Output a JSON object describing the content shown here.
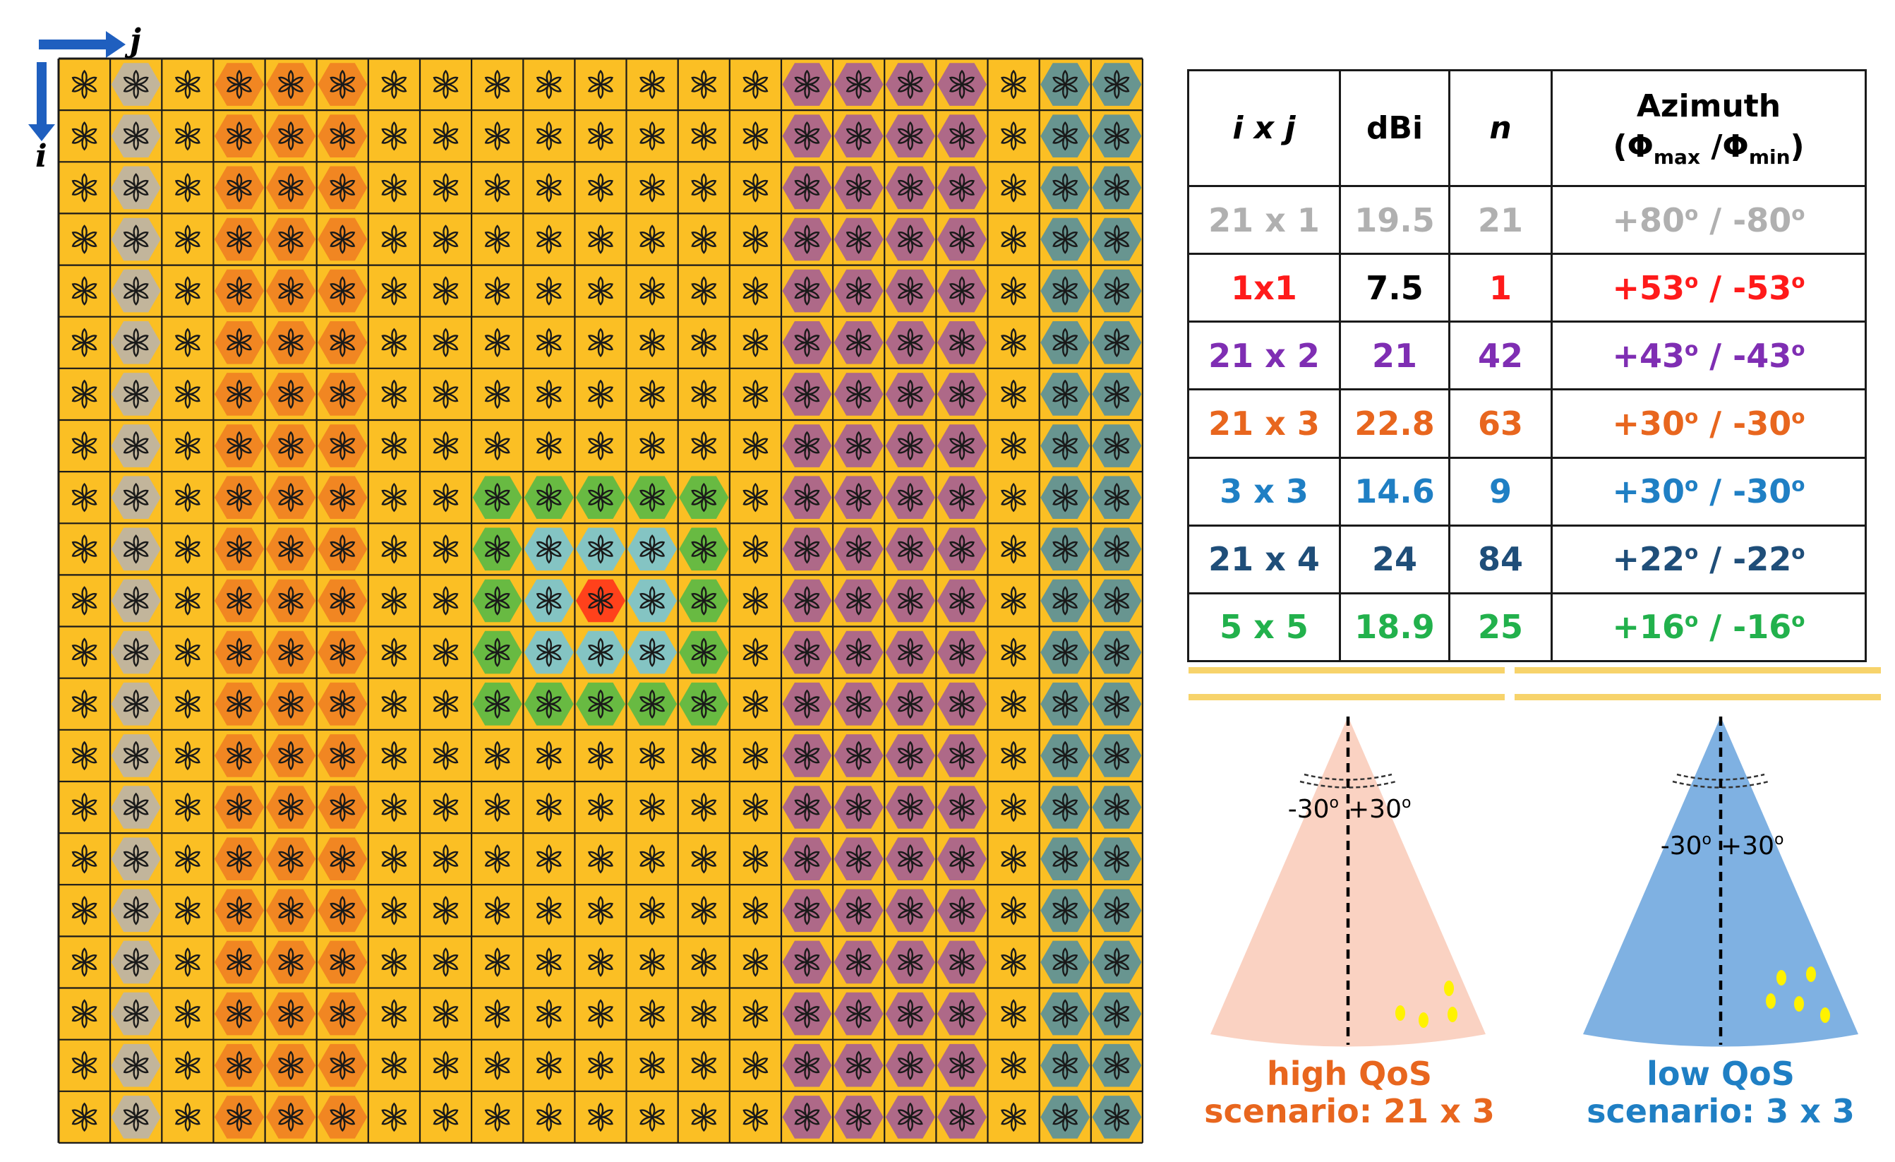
{
  "grid": {
    "rows": 21,
    "cols": 21,
    "axis_i": "i",
    "axis_j": "j",
    "colors": {
      "board": "#FBBF24",
      "grid_line": "#1a1a1a",
      "arrow": "#1f5fbf",
      "gray": "#B7B3B0",
      "orange": "#EE7B22",
      "purple": "#A0599A",
      "teal": "#4E8DA3",
      "green": "#4DB848",
      "lightblue": "#6EC4DF",
      "red": "#FF2A1A"
    },
    "highlight_columns": [
      {
        "cols": [
          2
        ],
        "color": "gray"
      },
      {
        "cols": [
          4,
          5,
          6
        ],
        "color": "orange"
      },
      {
        "cols": [
          15,
          16,
          17,
          18
        ],
        "color": "purple"
      },
      {
        "cols": [
          20,
          21
        ],
        "color": "teal"
      }
    ],
    "highlight_block": {
      "rows": [
        9,
        13
      ],
      "cols": [
        9,
        13
      ],
      "outer_color": "green",
      "inner_rows": [
        10,
        12
      ],
      "inner_cols": [
        10,
        12
      ],
      "inner_color": "lightblue",
      "center": [
        11,
        11
      ],
      "center_color": "red"
    }
  },
  "table": {
    "headers": [
      "i x j",
      "dBi",
      "n",
      "Azimuth"
    ],
    "azimuth_sub": {
      "open": "(Φ",
      "max": "max",
      "sep": " /Φ",
      "min": "min",
      "close": ")"
    },
    "rows": [
      {
        "ixj": "21 x 1",
        "dbi": "19.5",
        "n": "21",
        "az_max": "+80",
        "az_min": "-80",
        "color": "#B0B0B0"
      },
      {
        "ixj": "1x1",
        "dbi": "7.5",
        "n": "1",
        "az_max": "+53",
        "az_min": "-53",
        "color": "#FF1A1A",
        "dbi_color": "#000000"
      },
      {
        "ixj": "21 x 2",
        "dbi": "21",
        "n": "42",
        "az_max": "+43",
        "az_min": "-43",
        "color": "#7F2EB3"
      },
      {
        "ixj": "21 x 3",
        "dbi": "22.8",
        "n": "63",
        "az_max": "+30",
        "az_min": "-30",
        "color": "#E8661E"
      },
      {
        "ixj": "3 x 3",
        "dbi": "14.6",
        "n": "9",
        "az_max": "+30",
        "az_min": "-30",
        "color": "#1F7FC4"
      },
      {
        "ixj": "21 x 4",
        "dbi": "24",
        "n": "84",
        "az_max": "+22",
        "az_min": "-22",
        "color": "#1F4E79"
      },
      {
        "ixj": "5 x 5",
        "dbi": "18.9",
        "n": "25",
        "az_max": "+16",
        "az_min": "-16",
        "color": "#22B14C"
      }
    ],
    "degree": "o",
    "slash": " / "
  },
  "scenarios": [
    {
      "angle_left": "-30",
      "angle_right": "+30",
      "deg": "o",
      "caption_line1": "high QoS",
      "caption_line2": "scenario: 21 x 3",
      "cone_color": "#FAD2C2",
      "caption_color": "#E8661E"
    },
    {
      "angle_left": "-30",
      "angle_right": "+30",
      "deg": "o",
      "caption_line1": "low QoS",
      "caption_line2": "scenario: 3 x 3",
      "cone_color": "#7FB1E2",
      "caption_color": "#1F7FC4"
    }
  ]
}
